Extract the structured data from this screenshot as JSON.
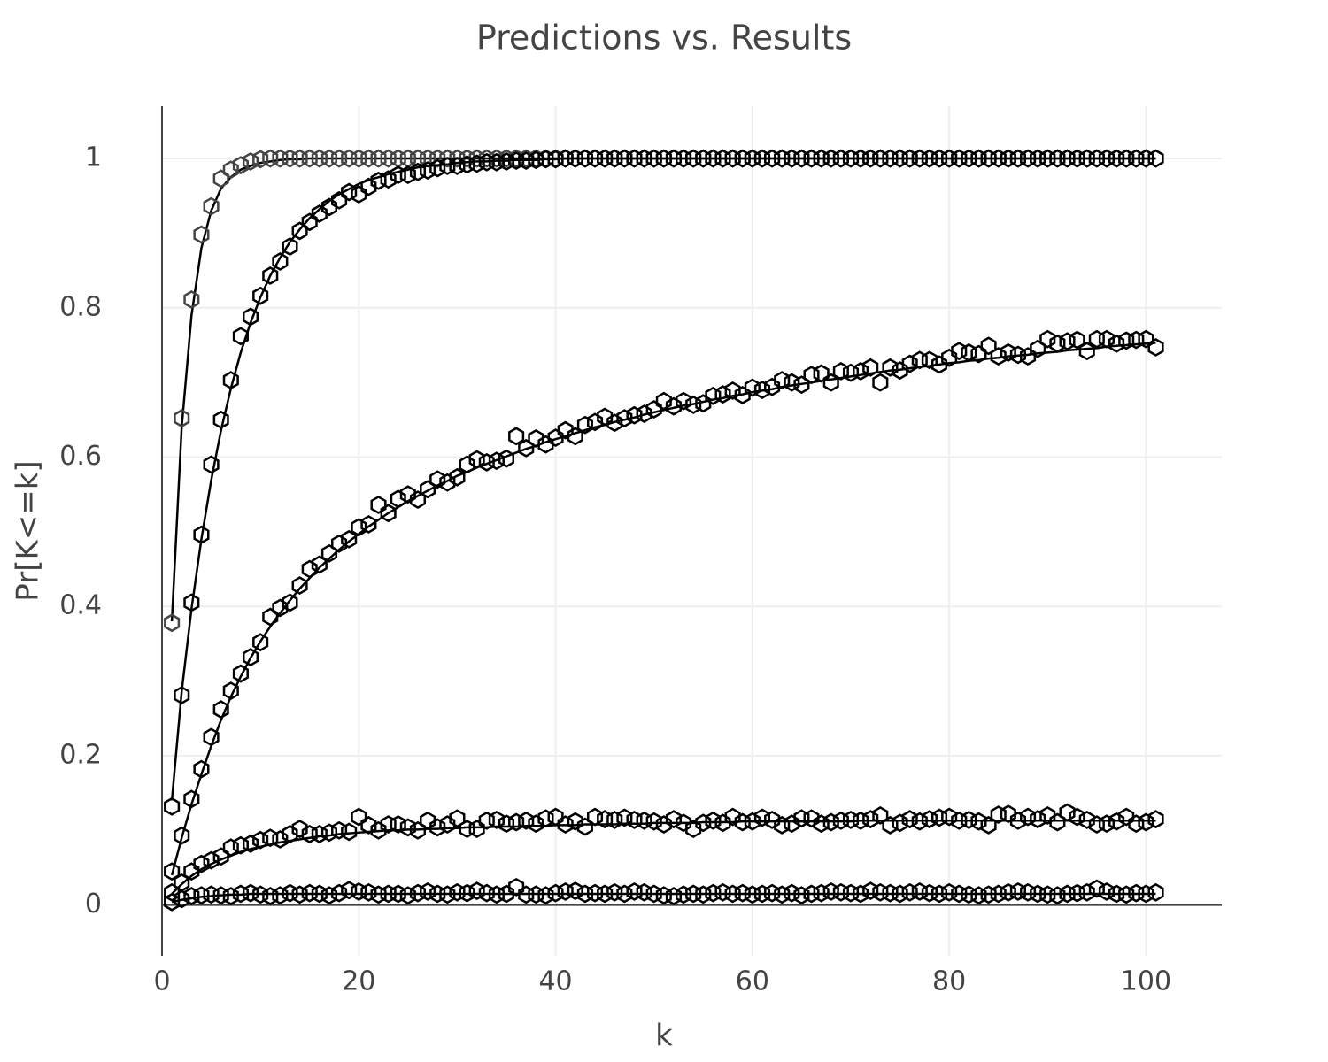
{
  "chart_data": {
    "type": "scatter",
    "title": "Predictions vs. Results",
    "x_label": "k",
    "y_label": "Pr[K<=k]",
    "xlim": [
      0,
      107.7
    ],
    "ylim": [
      -0.068,
      1.07
    ],
    "xticks": [
      0,
      20,
      40,
      60,
      80,
      100
    ],
    "yticks": [
      0,
      0.2,
      0.4,
      0.6,
      0.8,
      1
    ],
    "grid": true,
    "zeroline": true,
    "x": [
      1,
      2,
      3,
      4,
      5,
      6,
      7,
      8,
      9,
      10,
      11,
      12,
      13,
      14,
      15,
      16,
      17,
      18,
      19,
      20,
      21,
      22,
      23,
      24,
      25,
      26,
      27,
      28,
      29,
      30,
      31,
      32,
      33,
      34,
      35,
      36,
      37,
      38,
      39,
      40,
      41,
      42,
      43,
      44,
      45,
      46,
      47,
      48,
      49,
      50,
      51,
      52,
      53,
      54,
      55,
      56,
      57,
      58,
      59,
      60,
      61,
      62,
      63,
      64,
      65,
      66,
      67,
      68,
      69,
      70,
      71,
      72,
      73,
      74,
      75,
      76,
      77,
      78,
      79,
      80,
      81,
      82,
      83,
      84,
      85,
      86,
      87,
      88,
      89,
      90,
      91,
      92,
      93,
      94,
      95,
      96,
      97,
      98,
      99,
      100,
      101
    ],
    "series": [
      {
        "mode": "lines",
        "color": "#000000",
        "values": [
          0.38,
          0.64,
          0.79,
          0.88,
          0.93,
          0.96,
          0.975,
          0.985,
          0.99,
          0.994,
          0.996,
          0.998,
          0.999,
          0.999,
          1,
          1,
          1,
          1,
          1,
          1,
          1,
          1,
          1,
          1,
          1,
          1,
          1,
          1,
          1,
          1,
          1,
          1,
          1,
          1,
          1,
          1,
          1,
          1,
          1,
          1,
          1,
          1,
          1,
          1,
          1,
          1,
          1,
          1,
          1,
          1,
          1,
          1,
          1,
          1,
          1,
          1,
          1,
          1,
          1,
          1,
          1,
          1,
          1,
          1,
          1,
          1,
          1,
          1,
          1,
          1,
          1,
          1,
          1,
          1,
          1,
          1,
          1,
          1,
          1,
          1,
          1,
          1,
          1,
          1,
          1,
          1,
          1,
          1,
          1,
          1,
          1,
          1,
          1,
          1,
          1,
          1,
          1,
          1,
          1,
          1,
          1
        ]
      },
      {
        "mode": "markers",
        "color": "#444444",
        "values": [
          0.378,
          0.652,
          0.811,
          0.898,
          0.936,
          0.973,
          0.985,
          0.991,
          0.996,
          0.999,
          1,
          1,
          1,
          1,
          1,
          1,
          1,
          1,
          1,
          1,
          1,
          1,
          1,
          1,
          1,
          1,
          1,
          1,
          1,
          1,
          1,
          1,
          1,
          1,
          1,
          1,
          1,
          1,
          1,
          1,
          1,
          1,
          1,
          1,
          1,
          1,
          1,
          1,
          1,
          1,
          1,
          1,
          1,
          1,
          1,
          1,
          1,
          1,
          1,
          1,
          1,
          1,
          1,
          1,
          1,
          1,
          1,
          1,
          1,
          1,
          1,
          1,
          1,
          1,
          1,
          1,
          1,
          1,
          1,
          1,
          1,
          1,
          1,
          1,
          1,
          1,
          1,
          1,
          1,
          1,
          1,
          1,
          1,
          1,
          1,
          1,
          1,
          1,
          1,
          1,
          1
        ]
      },
      {
        "mode": "lines",
        "color": "#000000",
        "values": [
          0.14,
          0.286,
          0.397,
          0.49,
          0.569,
          0.636,
          0.692,
          0.74,
          0.78,
          0.814,
          0.843,
          0.867,
          0.888,
          0.905,
          0.92,
          0.932,
          0.943,
          0.952,
          0.959,
          0.966,
          0.971,
          0.975,
          0.979,
          0.982,
          0.985,
          0.988,
          0.99,
          0.991,
          0.992,
          0.994,
          0.995,
          0.996,
          0.996,
          0.997,
          0.997,
          0.998,
          0.998,
          0.998,
          0.999,
          0.999,
          1,
          1,
          1,
          1,
          1,
          1,
          1,
          1,
          1,
          1,
          1,
          1,
          1,
          1,
          1,
          1,
          1,
          1,
          1,
          1,
          1,
          1,
          1,
          1,
          1,
          1,
          1,
          1,
          1,
          1,
          1,
          1,
          1,
          1,
          1,
          1,
          1,
          1,
          1,
          1,
          1,
          1,
          1,
          1,
          1,
          1,
          1,
          1,
          1,
          1,
          1,
          1,
          1,
          1,
          1,
          1,
          1,
          1,
          1,
          1,
          1
        ]
      },
      {
        "mode": "markers",
        "color": "#000000",
        "values": [
          0.132,
          0.281,
          0.405,
          0.496,
          0.59,
          0.65,
          0.703,
          0.762,
          0.788,
          0.816,
          0.843,
          0.862,
          0.882,
          0.903,
          0.915,
          0.926,
          0.935,
          0.944,
          0.955,
          0.952,
          0.962,
          0.97,
          0.972,
          0.978,
          0.978,
          0.982,
          0.984,
          0.987,
          0.99,
          0.99,
          0.992,
          0.993,
          0.995,
          0.995,
          0.996,
          0.997,
          0.997,
          0.998,
          0.999,
          0.999,
          1,
          1,
          1,
          1,
          1,
          1,
          1,
          1,
          1,
          1,
          1,
          1,
          1,
          1,
          1,
          1,
          1,
          1,
          1,
          1,
          1,
          1,
          1,
          1,
          1,
          1,
          1,
          1,
          1,
          1,
          1,
          1,
          1,
          1,
          1,
          1,
          1,
          1,
          1,
          1,
          1,
          1,
          1,
          1,
          1,
          1,
          1,
          1,
          1,
          1,
          1,
          1,
          1,
          1,
          1,
          1,
          1,
          1,
          1,
          1,
          1
        ]
      },
      {
        "mode": "lines",
        "color": "#000000",
        "values": [
          0.04,
          0.09,
          0.135,
          0.175,
          0.213,
          0.248,
          0.279,
          0.306,
          0.331,
          0.353,
          0.373,
          0.391,
          0.408,
          0.424,
          0.438,
          0.452,
          0.464,
          0.476,
          0.487,
          0.497,
          0.507,
          0.516,
          0.525,
          0.533,
          0.541,
          0.548,
          0.555,
          0.562,
          0.568,
          0.575,
          0.58,
          0.586,
          0.591,
          0.596,
          0.601,
          0.606,
          0.611,
          0.615,
          0.62,
          0.624,
          0.628,
          0.632,
          0.636,
          0.64,
          0.643,
          0.647,
          0.65,
          0.653,
          0.657,
          0.66,
          0.663,
          0.666,
          0.669,
          0.671,
          0.674,
          0.677,
          0.679,
          0.682,
          0.684,
          0.687,
          0.689,
          0.691,
          0.694,
          0.696,
          0.698,
          0.7,
          0.702,
          0.704,
          0.706,
          0.708,
          0.71,
          0.712,
          0.714,
          0.716,
          0.717,
          0.719,
          0.721,
          0.722,
          0.724,
          0.726,
          0.727,
          0.729,
          0.73,
          0.732,
          0.733,
          0.735,
          0.736,
          0.737,
          0.739,
          0.74,
          0.741,
          0.743,
          0.744,
          0.745,
          0.746,
          0.748,
          0.749,
          0.75,
          0.751,
          0.752,
          0.753
        ]
      },
      {
        "mode": "markers",
        "color": "#000000",
        "values": [
          0.045,
          0.093,
          0.142,
          0.182,
          0.225,
          0.262,
          0.287,
          0.31,
          0.332,
          0.352,
          0.386,
          0.398,
          0.405,
          0.428,
          0.45,
          0.456,
          0.471,
          0.484,
          0.49,
          0.506,
          0.51,
          0.536,
          0.525,
          0.544,
          0.55,
          0.543,
          0.557,
          0.57,
          0.566,
          0.573,
          0.59,
          0.597,
          0.593,
          0.595,
          0.598,
          0.628,
          0.612,
          0.625,
          0.617,
          0.626,
          0.636,
          0.628,
          0.643,
          0.647,
          0.654,
          0.646,
          0.652,
          0.656,
          0.658,
          0.664,
          0.675,
          0.668,
          0.675,
          0.67,
          0.672,
          0.682,
          0.684,
          0.689,
          0.683,
          0.693,
          0.69,
          0.694,
          0.703,
          0.7,
          0.697,
          0.71,
          0.712,
          0.7,
          0.715,
          0.713,
          0.715,
          0.72,
          0.7,
          0.72,
          0.716,
          0.725,
          0.73,
          0.73,
          0.724,
          0.733,
          0.742,
          0.74,
          0.738,
          0.749,
          0.735,
          0.74,
          0.737,
          0.735,
          0.745,
          0.758,
          0.752,
          0.755,
          0.757,
          0.742,
          0.758,
          0.758,
          0.752,
          0.756,
          0.757,
          0.758,
          0.747
        ]
      },
      {
        "mode": "lines",
        "color": "#000000",
        "values": [
          0.015,
          0.028,
          0.039,
          0.048,
          0.055,
          0.061,
          0.066,
          0.071,
          0.075,
          0.078,
          0.081,
          0.084,
          0.086,
          0.088,
          0.09,
          0.092,
          0.093,
          0.095,
          0.096,
          0.097,
          0.098,
          0.099,
          0.1,
          0.1,
          0.101,
          0.101,
          0.102,
          0.102,
          0.103,
          0.103,
          0.104,
          0.104,
          0.104,
          0.105,
          0.105,
          0.105,
          0.106,
          0.106,
          0.106,
          0.107,
          0.107,
          0.107,
          0.108,
          0.108,
          0.108,
          0.108,
          0.109,
          0.109,
          0.109,
          0.11,
          0.11,
          0.11,
          0.11,
          0.11,
          0.111,
          0.111,
          0.111,
          0.111,
          0.112,
          0.112,
          0.112,
          0.112,
          0.112,
          0.112,
          0.112,
          0.112,
          0.112,
          0.112,
          0.112,
          0.112,
          0.113,
          0.113,
          0.113,
          0.113,
          0.113,
          0.113,
          0.113,
          0.113,
          0.113,
          0.113,
          0.113,
          0.113,
          0.113,
          0.113,
          0.113,
          0.113,
          0.113,
          0.113,
          0.113,
          0.113,
          0.113,
          0.113,
          0.113,
          0.113,
          0.113,
          0.113,
          0.113,
          0.113,
          0.113,
          0.113,
          0.113
        ]
      },
      {
        "mode": "markers",
        "color": "#000000",
        "values": [
          0.017,
          0.03,
          0.045,
          0.055,
          0.06,
          0.065,
          0.077,
          0.08,
          0.082,
          0.087,
          0.09,
          0.088,
          0.095,
          0.102,
          0.095,
          0.095,
          0.097,
          0.1,
          0.098,
          0.118,
          0.107,
          0.1,
          0.108,
          0.108,
          0.104,
          0.1,
          0.113,
          0.104,
          0.108,
          0.116,
          0.102,
          0.102,
          0.113,
          0.114,
          0.109,
          0.111,
          0.113,
          0.109,
          0.116,
          0.118,
          0.108,
          0.112,
          0.105,
          0.118,
          0.115,
          0.114,
          0.117,
          0.114,
          0.113,
          0.112,
          0.108,
          0.115,
          0.11,
          0.102,
          0.11,
          0.113,
          0.11,
          0.118,
          0.111,
          0.112,
          0.117,
          0.114,
          0.107,
          0.109,
          0.116,
          0.116,
          0.109,
          0.111,
          0.113,
          0.114,
          0.113,
          0.115,
          0.12,
          0.107,
          0.11,
          0.115,
          0.112,
          0.115,
          0.117,
          0.118,
          0.113,
          0.114,
          0.112,
          0.107,
          0.121,
          0.122,
          0.113,
          0.118,
          0.115,
          0.12,
          0.111,
          0.124,
          0.118,
          0.114,
          0.108,
          0.109,
          0.112,
          0.118,
          0.109,
          0.111,
          0.115
        ]
      },
      {
        "mode": "lines",
        "color": "#000000",
        "values": [
          0.004,
          0.007,
          0.009,
          0.011,
          0.012,
          0.013,
          0.014,
          0.014,
          0.015,
          0.015,
          0.015,
          0.015,
          0.015,
          0.015,
          0.015,
          0.015,
          0.015,
          0.015,
          0.015,
          0.015,
          0.015,
          0.015,
          0.015,
          0.015,
          0.015,
          0.015,
          0.015,
          0.015,
          0.015,
          0.015,
          0.015,
          0.015,
          0.015,
          0.015,
          0.015,
          0.015,
          0.015,
          0.015,
          0.015,
          0.015,
          0.015,
          0.015,
          0.015,
          0.015,
          0.015,
          0.015,
          0.015,
          0.015,
          0.015,
          0.015,
          0.015,
          0.015,
          0.015,
          0.015,
          0.015,
          0.015,
          0.015,
          0.015,
          0.015,
          0.015,
          0.015,
          0.015,
          0.015,
          0.015,
          0.015,
          0.015,
          0.015,
          0.015,
          0.015,
          0.015,
          0.015,
          0.015,
          0.015,
          0.015,
          0.015,
          0.015,
          0.015,
          0.015,
          0.015,
          0.015,
          0.015,
          0.015,
          0.015,
          0.015,
          0.015,
          0.015,
          0.015,
          0.015,
          0.015,
          0.015,
          0.015,
          0.015,
          0.015,
          0.015,
          0.015,
          0.015,
          0.015,
          0.015,
          0.015,
          0.015,
          0.015
        ]
      },
      {
        "mode": "markers",
        "color": "#000000",
        "values": [
          0.004,
          0.008,
          0.012,
          0.013,
          0.014,
          0.013,
          0.012,
          0.015,
          0.016,
          0.014,
          0.012,
          0.013,
          0.016,
          0.014,
          0.016,
          0.015,
          0.013,
          0.016,
          0.02,
          0.018,
          0.017,
          0.014,
          0.015,
          0.015,
          0.013,
          0.016,
          0.018,
          0.015,
          0.014,
          0.017,
          0.016,
          0.019,
          0.016,
          0.014,
          0.015,
          0.024,
          0.014,
          0.014,
          0.013,
          0.016,
          0.018,
          0.019,
          0.015,
          0.016,
          0.015,
          0.017,
          0.015,
          0.018,
          0.017,
          0.015,
          0.013,
          0.012,
          0.014,
          0.015,
          0.014,
          0.016,
          0.017,
          0.015,
          0.016,
          0.014,
          0.015,
          0.016,
          0.014,
          0.016,
          0.013,
          0.015,
          0.016,
          0.018,
          0.017,
          0.016,
          0.015,
          0.019,
          0.017,
          0.016,
          0.015,
          0.017,
          0.018,
          0.016,
          0.015,
          0.017,
          0.015,
          0.014,
          0.013,
          0.014,
          0.015,
          0.017,
          0.018,
          0.017,
          0.015,
          0.014,
          0.013,
          0.015,
          0.016,
          0.017,
          0.022,
          0.018,
          0.015,
          0.014,
          0.016,
          0.015,
          0.017
        ]
      }
    ]
  }
}
